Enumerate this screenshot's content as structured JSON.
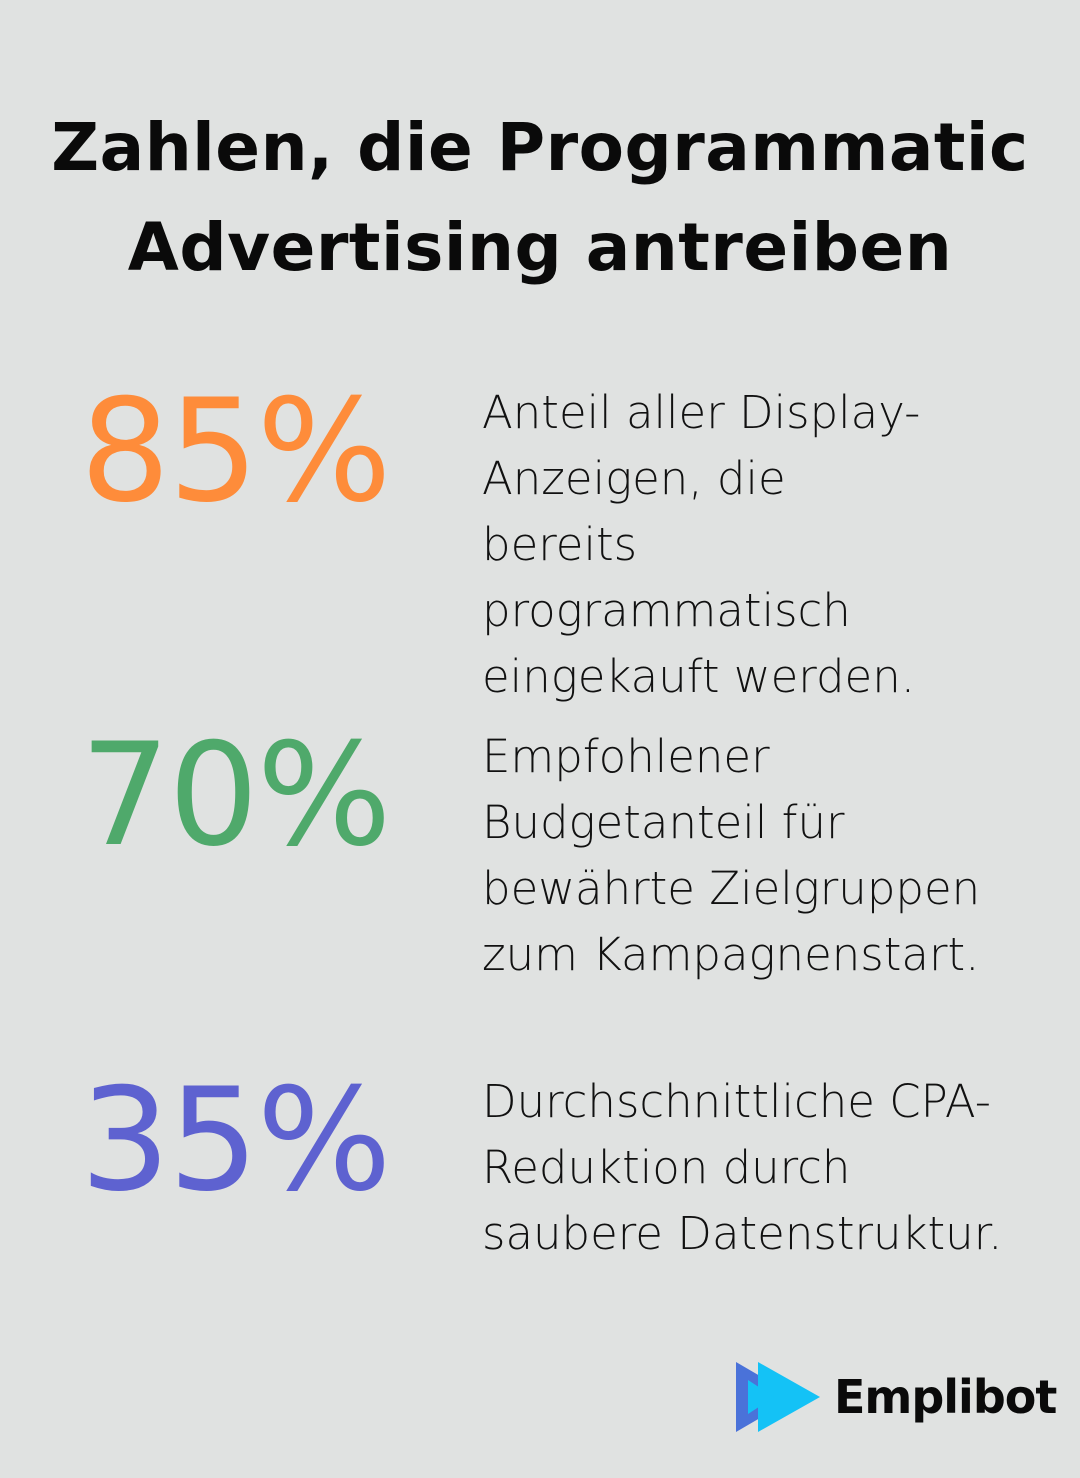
{
  "title": {
    "line1": "Zahlen, die Programmatic",
    "line2": "Advertising antreiben"
  },
  "stats": [
    {
      "value": "85%",
      "color": "#fe8c3a",
      "description": "Anteil aller Display-Anzeigen, die bereits programmatisch eingekauft werden."
    },
    {
      "value": "70%",
      "color": "#4fa96b",
      "description": "Empfohlener Budgetanteil für bewährte Zielgruppen zum Kampagnenstart."
    },
    {
      "value": "35%",
      "color": "#5e62d0",
      "description": "Durchschnittliche CPA-Reduktion durch saubere Datenstruktur."
    }
  ],
  "logo": {
    "text": "Emplibot",
    "icon": "play-forward-icon",
    "colors": [
      "#4a72d9",
      "#14c2f6"
    ]
  }
}
